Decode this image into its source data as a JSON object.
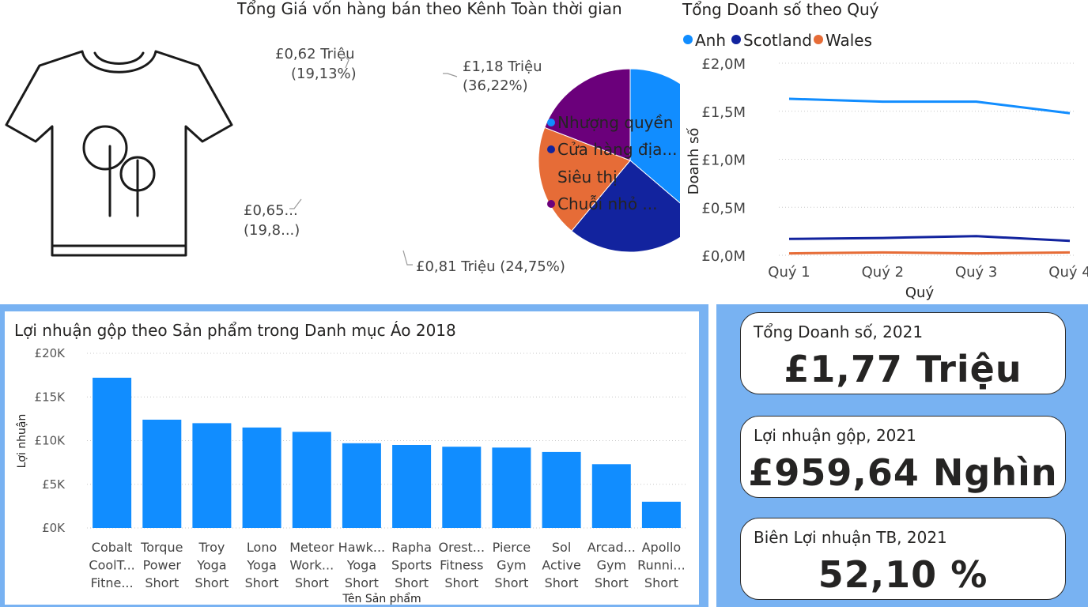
{
  "colors": {
    "blue": "#118dff",
    "navy": "#12239e",
    "orange": "#e66c37",
    "purple": "#6b007b",
    "panel": "#78b2f2"
  },
  "image_icon": "t-shirt-icon",
  "chart_data": [
    {
      "type": "pie",
      "title": "Tổng Giá vốn hàng bán theo Kênh Toàn thời gian",
      "legend_position": "right",
      "slices": [
        {
          "name": "Nhượng quyền",
          "value": 1.18,
          "percent": 36.22,
          "label": "£1,18 Triệu",
          "pct_label": "(36,22%)"
        },
        {
          "name": "Cửa hàng địa...",
          "value": 0.81,
          "percent": 24.75,
          "label": "£0,81 Triệu (24,75%)",
          "pct_label": ""
        },
        {
          "name": "Siêu thị",
          "value": 0.65,
          "percent": 19.8,
          "label": "£0,65...",
          "pct_label": "(19,8...)"
        },
        {
          "name": "Chuỗi nhỏ ...",
          "value": 0.62,
          "percent": 19.13,
          "label": "£0,62 Triệu",
          "pct_label": "(19,13%)"
        }
      ]
    },
    {
      "type": "line",
      "title": "Tổng Doanh số theo Quý",
      "xlabel": "Quý",
      "ylabel": "Doanh số",
      "ylim": [
        0,
        2.0
      ],
      "yticks": [
        "£0,0M",
        "£0,5M",
        "£1,0M",
        "£1,5M",
        "£2,0M"
      ],
      "categories": [
        "Quý 1",
        "Quý 2",
        "Quý 3",
        "Quý 4"
      ],
      "legend_position": "top-left",
      "grid": true,
      "series": [
        {
          "name": "Anh",
          "values": [
            1.63,
            1.6,
            1.6,
            1.48
          ]
        },
        {
          "name": "Scotland",
          "values": [
            0.17,
            0.18,
            0.2,
            0.15
          ]
        },
        {
          "name": "Wales",
          "values": [
            0.02,
            0.03,
            0.02,
            0.03
          ]
        }
      ]
    },
    {
      "type": "bar",
      "title": "Lợi nhuận gộp theo Sản phẩm trong Danh mục Áo 2018",
      "xlabel": "Tên Sản phẩm",
      "ylabel": "Lợi nhuận",
      "ylim": [
        0,
        20000
      ],
      "yticks": [
        "£0K",
        "£5K",
        "£10K",
        "£15K",
        "£20K"
      ],
      "grid": true,
      "categories": [
        [
          "Cobalt",
          "CoolT...",
          "Fitne..."
        ],
        [
          "Torque",
          "Power",
          "Short"
        ],
        [
          "Troy",
          "Yoga",
          "Short"
        ],
        [
          "Lono",
          "Yoga",
          "Short"
        ],
        [
          "Meteor",
          "Work...",
          "Short"
        ],
        [
          "Hawk...",
          "Yoga",
          "Short"
        ],
        [
          "Rapha",
          "Sports",
          "Short"
        ],
        [
          "Orest...",
          "Fitness",
          "Short"
        ],
        [
          "Pierce",
          "Gym",
          "Short"
        ],
        [
          "Sol",
          "Active",
          "Short"
        ],
        [
          "Arcad...",
          "Gym",
          "Short"
        ],
        [
          "Apollo",
          "Runni...",
          "Short"
        ]
      ],
      "values": [
        17200,
        12400,
        12000,
        11500,
        11000,
        9700,
        9500,
        9300,
        9200,
        8700,
        7300,
        3000
      ]
    }
  ],
  "kpis": [
    {
      "label": "Tổng Doanh số, 2021",
      "value": "£1,77 Triệu"
    },
    {
      "label": "Lợi nhuận gộp, 2021",
      "value": "£959,64 Nghìn"
    },
    {
      "label": "Biên Lợi nhuận TB, 2021",
      "value": "52,10 %"
    }
  ]
}
